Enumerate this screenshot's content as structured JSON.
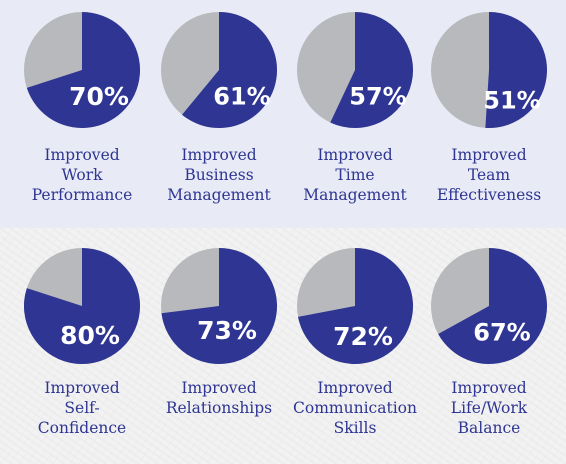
{
  "colors": {
    "achieved": "#2e3592",
    "remainder": "#b8b9bc",
    "label_text": "#2e3592",
    "top_background": "#e8eaf6",
    "bottom_background": "#f2f2f2"
  },
  "chart_data": [
    {
      "type": "pie",
      "value_percent": 70,
      "value_label": "70%",
      "label_lines": [
        "Improved",
        "Work",
        "Performance"
      ]
    },
    {
      "type": "pie",
      "value_percent": 61,
      "value_label": "61%",
      "label_lines": [
        "Improved",
        "Business",
        "Management"
      ]
    },
    {
      "type": "pie",
      "value_percent": 57,
      "value_label": "57%",
      "label_lines": [
        "Improved",
        "Time",
        "Management"
      ]
    },
    {
      "type": "pie",
      "value_percent": 51,
      "value_label": "51%",
      "label_lines": [
        "Improved",
        "Team",
        "Effectiveness"
      ]
    },
    {
      "type": "pie",
      "value_percent": 80,
      "value_label": "80%",
      "label_lines": [
        "Improved",
        "Self-",
        "Confidence"
      ]
    },
    {
      "type": "pie",
      "value_percent": 73,
      "value_label": "73%",
      "label_lines": [
        "Improved",
        "Relationships"
      ]
    },
    {
      "type": "pie",
      "value_percent": 72,
      "value_label": "72%",
      "label_lines": [
        "Improved",
        "Communication",
        "Skills"
      ]
    },
    {
      "type": "pie",
      "value_percent": 67,
      "value_label": "67%",
      "label_lines": [
        "Improved",
        "Life/Work",
        "Balance"
      ]
    }
  ]
}
